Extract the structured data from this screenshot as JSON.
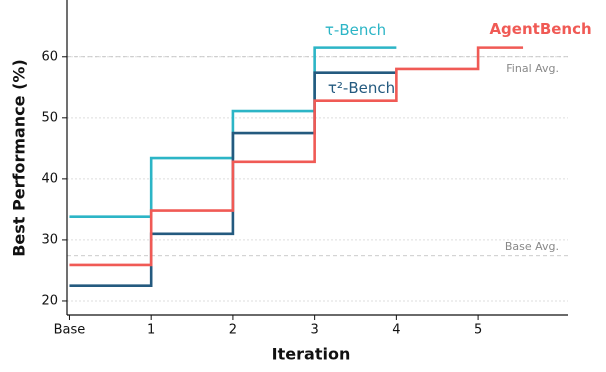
{
  "chart_data": {
    "type": "step",
    "xlabel": "Iteration",
    "ylabel": "Best Performance (%)",
    "xlim": [
      -0.03,
      6.1
    ],
    "ylim": [
      17.7,
      69.3
    ],
    "xticks": [
      {
        "value": 0,
        "label": "Base"
      },
      1,
      2,
      3,
      4,
      5
    ],
    "yticks": [
      20,
      30,
      40,
      50,
      60
    ],
    "grid": true,
    "series": [
      {
        "name": "τ-Bench",
        "color": "#2cb5c6",
        "x": [
          0,
          1,
          2,
          3,
          4
        ],
        "values": [
          33.8,
          43.4,
          51.1,
          61.5,
          61.5
        ]
      },
      {
        "name": "τ²-Bench",
        "color": "#245a7f",
        "x": [
          0,
          1,
          2,
          3,
          4
        ],
        "values": [
          22.5,
          31.0,
          47.5,
          57.4,
          57.4
        ]
      },
      {
        "name": "AgentBench",
        "color": "#f05a55",
        "x": [
          0,
          1,
          2,
          3,
          4,
          5,
          5.55
        ],
        "values": [
          25.9,
          34.8,
          42.8,
          52.8,
          58.0,
          61.5,
          61.5
        ]
      }
    ],
    "reference_lines": [
      {
        "label": "Final Avg.",
        "value": 60.0
      },
      {
        "label": "Base Avg.",
        "value": 27.4
      }
    ]
  }
}
